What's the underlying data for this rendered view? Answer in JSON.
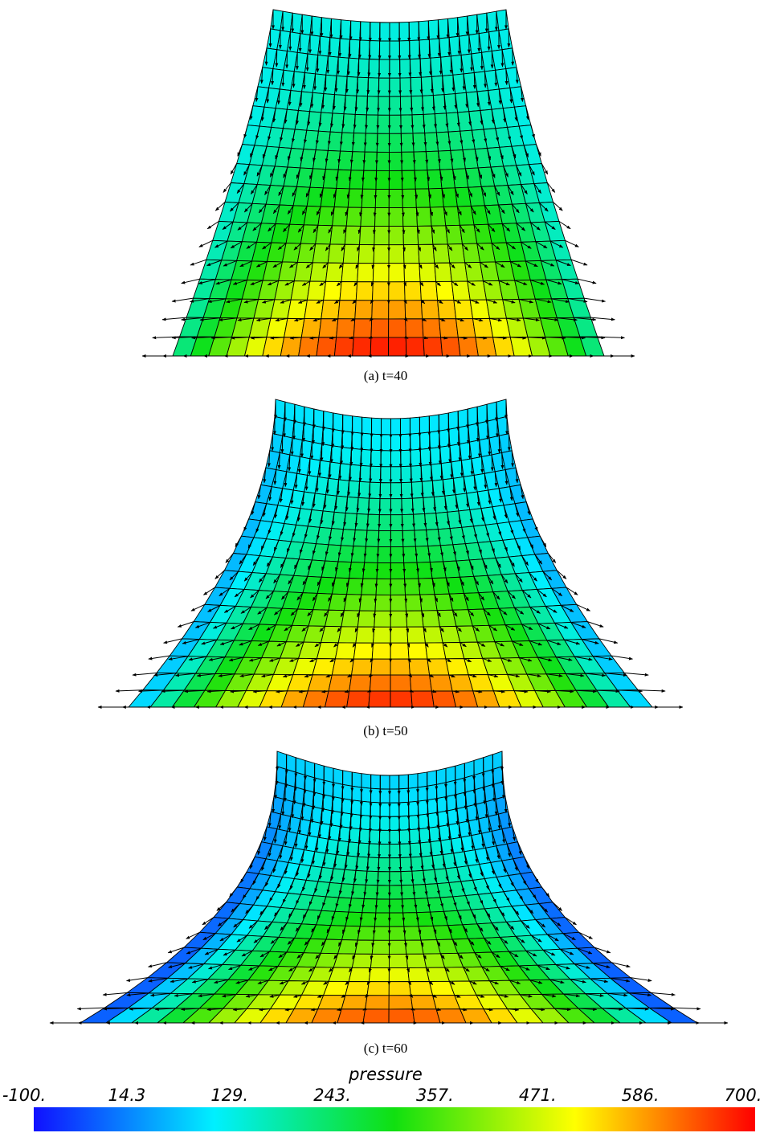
{
  "panels": [
    {
      "caption": "(a)  t=40"
    },
    {
      "caption": "(b)  t=50"
    },
    {
      "caption": "(c)  t=60"
    }
  ],
  "colorbar": {
    "title": "pressure",
    "tick_labels": [
      "-100.",
      "14.3",
      "129.",
      "243.",
      "357.",
      "471.",
      "586.",
      "700."
    ]
  }
}
